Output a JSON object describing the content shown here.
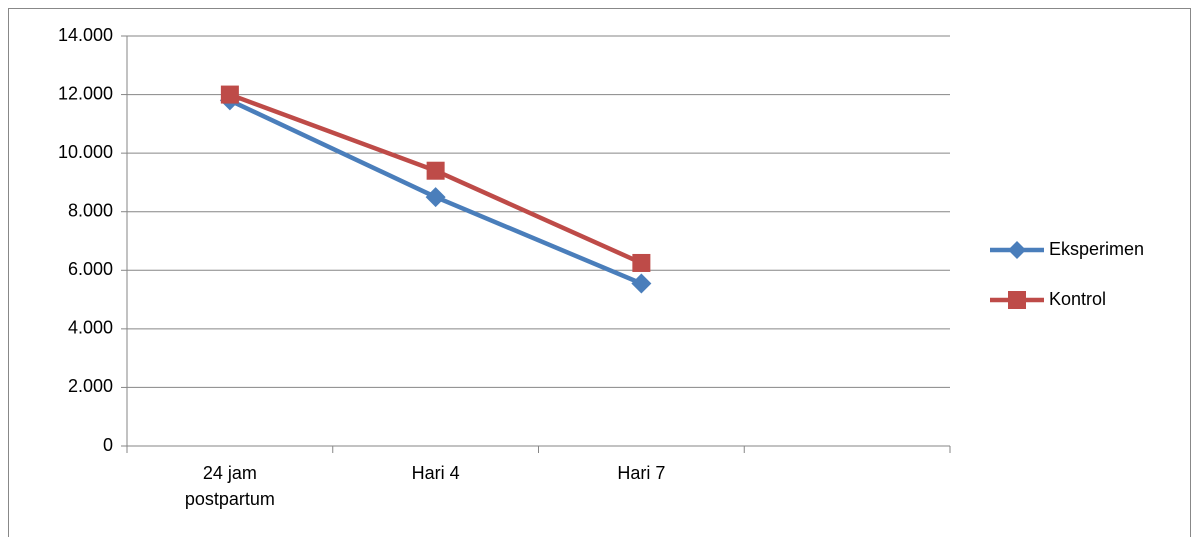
{
  "chart_data": {
    "type": "line",
    "categories": [
      "24 jam postpartum",
      "Hari 4",
      "Hari 7",
      null
    ],
    "series": [
      {
        "name": "Eksperimen",
        "color": "#4a7ebb",
        "marker": "diamond",
        "values": [
          11800,
          8500,
          5550,
          null
        ]
      },
      {
        "name": "Kontrol",
        "color": "#be4b48",
        "marker": "square",
        "values": [
          12000,
          9400,
          6250,
          null
        ]
      }
    ],
    "ylim": [
      0,
      14000
    ],
    "yticks": [
      0,
      {
        "value": 2000,
        "label": "2.000"
      },
      {
        "value": 4000,
        "label": "4.000"
      },
      {
        "value": 6000,
        "label": "6.000"
      },
      {
        "value": 8000,
        "label": "8.000"
      },
      {
        "value": 10000,
        "label": "10.000"
      },
      {
        "value": 12000,
        "label": "12.000"
      },
      {
        "value": 14000,
        "label": "14.000"
      }
    ],
    "grid": true,
    "legend": "right"
  }
}
